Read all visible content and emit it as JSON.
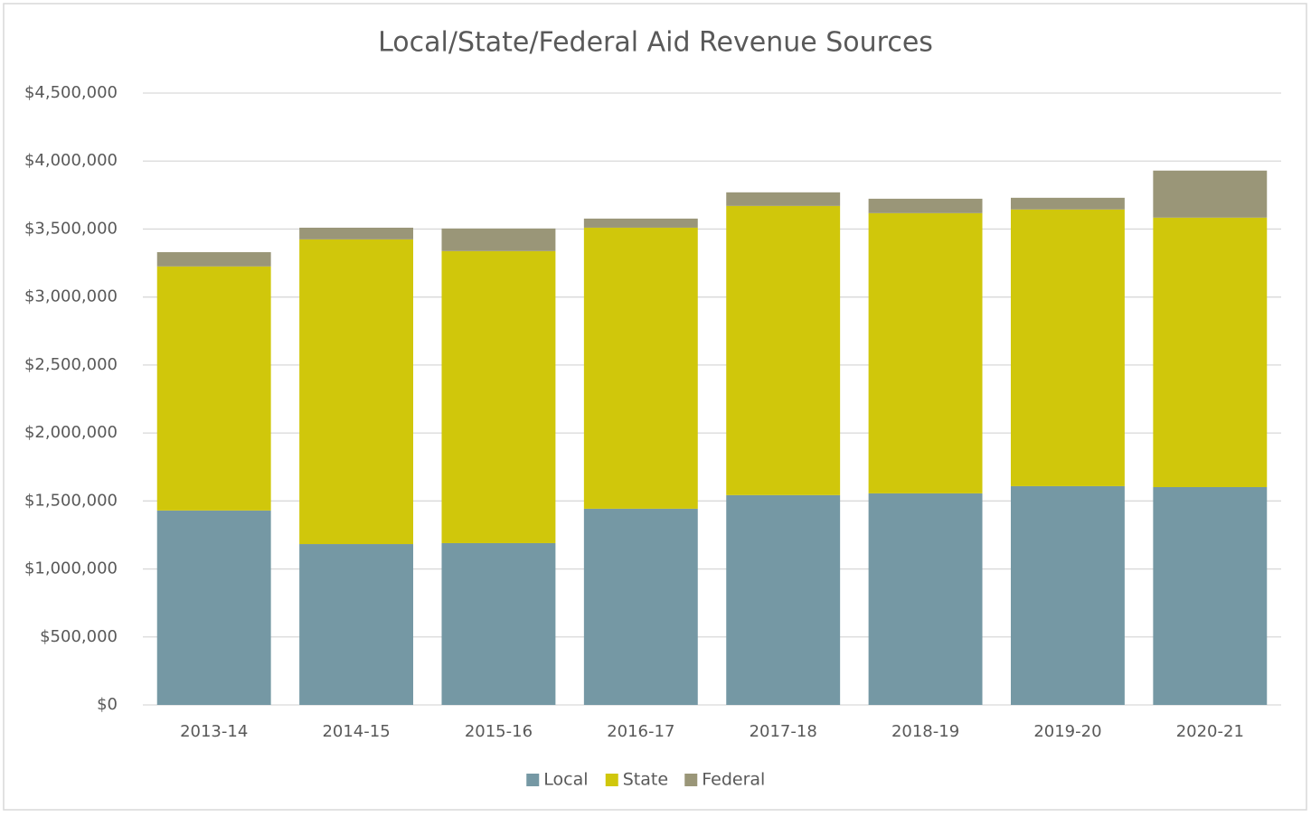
{
  "chart_data": {
    "type": "stacked_bar",
    "title": "Local/State/Federal Aid Revenue Sources",
    "categories": [
      "2013-14",
      "2014-15",
      "2015-16",
      "2016-17",
      "2017-18",
      "2018-19",
      "2019-20",
      "2020-21"
    ],
    "series": [
      {
        "name": "Local",
        "color": "#7598a4",
        "values": [
          1430000,
          1183000,
          1190000,
          1443000,
          1543000,
          1556000,
          1609000,
          1602000
        ]
      },
      {
        "name": "State",
        "color": "#d0c70b",
        "values": [
          1795000,
          2241000,
          2148000,
          2067000,
          2127000,
          2061000,
          2035000,
          1982000
        ]
      },
      {
        "name": "Federal",
        "color": "#9a9678",
        "values": [
          105000,
          86000,
          166000,
          67000,
          100000,
          106000,
          86000,
          346000
        ]
      }
    ],
    "ylim": [
      0,
      4500000
    ],
    "yticks": [
      {
        "value": 0,
        "label": "$0"
      },
      {
        "value": 500000,
        "label": "$500,000"
      },
      {
        "value": 1000000,
        "label": "$1,000,000"
      },
      {
        "value": 1500000,
        "label": "$1,500,000"
      },
      {
        "value": 2000000,
        "label": "$2,000,000"
      },
      {
        "value": 2500000,
        "label": "$2,500,000"
      },
      {
        "value": 3000000,
        "label": "$3,000,000"
      },
      {
        "value": 3500000,
        "label": "$3,500,000"
      },
      {
        "value": 4000000,
        "label": "$4,000,000"
      },
      {
        "value": 4500000,
        "label": "$4,500,000"
      }
    ],
    "grid": true,
    "legend": "bottom"
  }
}
